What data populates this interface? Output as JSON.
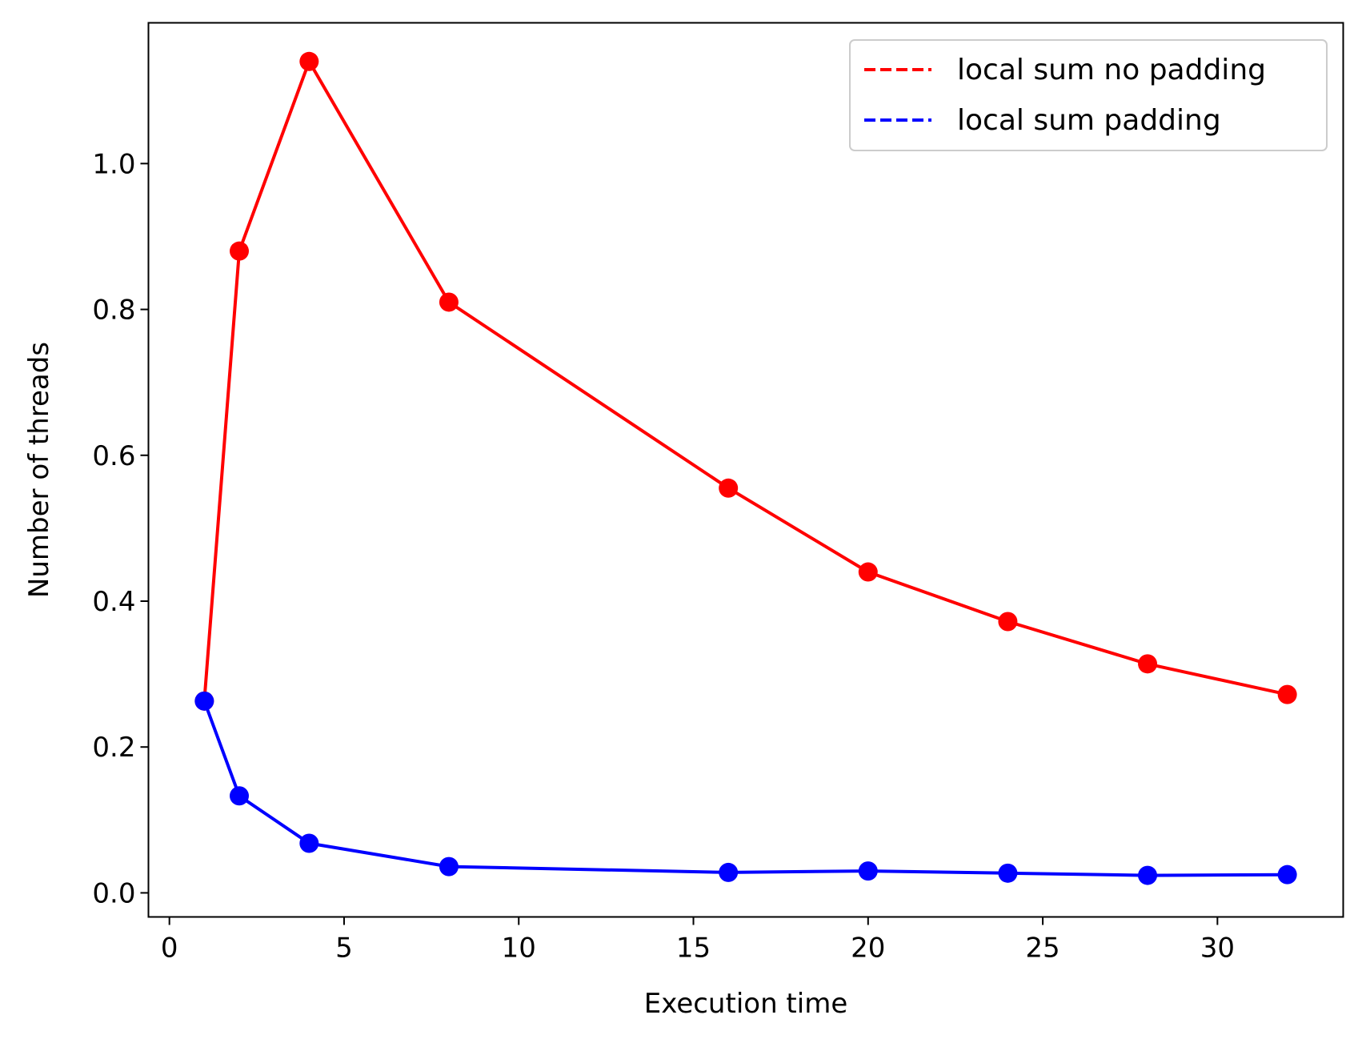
{
  "chart_data": {
    "type": "line",
    "title": "",
    "xlabel": "Execution time",
    "ylabel": "Number of threads",
    "xlim": [
      -0.6,
      33.6
    ],
    "ylim": [
      -0.033,
      1.193
    ],
    "xticks": [
      0,
      5,
      10,
      15,
      20,
      25,
      30
    ],
    "xtick_labels": [
      "0",
      "5",
      "10",
      "15",
      "20",
      "25",
      "30"
    ],
    "yticks": [
      0.0,
      0.2,
      0.4,
      0.6,
      0.8,
      1.0
    ],
    "ytick_labels": [
      "0.0",
      "0.2",
      "0.4",
      "0.6",
      "0.8",
      "1.0"
    ],
    "grid": false,
    "legend_position": "top-right",
    "x": [
      1,
      2,
      4,
      8,
      16,
      20,
      24,
      28,
      32
    ],
    "series": [
      {
        "name": "local sum no padding",
        "color": "#ff0000",
        "values": [
          0.263,
          0.88,
          1.14,
          0.81,
          0.555,
          0.44,
          0.372,
          0.314,
          0.272
        ]
      },
      {
        "name": "local sum padding",
        "color": "#0000ff",
        "values": [
          0.263,
          0.133,
          0.068,
          0.036,
          0.028,
          0.03,
          0.027,
          0.024,
          0.025
        ]
      }
    ]
  }
}
